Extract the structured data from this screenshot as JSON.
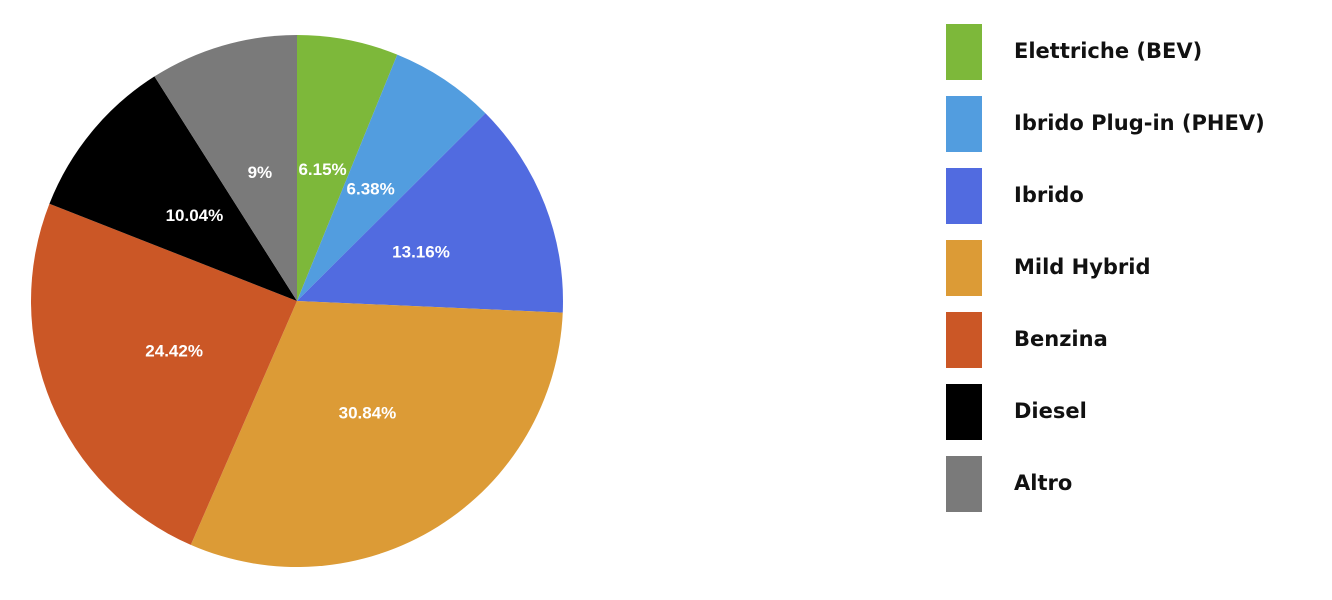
{
  "chart_data": {
    "type": "pie",
    "categories": [
      "Elettriche (BEV)",
      "Ibrido Plug-in (PHEV)",
      "Ibrido",
      "Mild Hybrid",
      "Benzina",
      "Diesel",
      "Altro"
    ],
    "values": [
      6.15,
      6.38,
      13.16,
      30.84,
      24.42,
      10.04,
      9
    ],
    "value_labels": [
      "6.15%",
      "6.38%",
      "13.16%",
      "30.84%",
      "24.42%",
      "10.04%",
      "9%"
    ],
    "colors": [
      "#7db83a",
      "#529ddf",
      "#516be0",
      "#dc9b36",
      "#cb5726",
      "#000000",
      "#7a7a7a"
    ],
    "legend": "right"
  }
}
